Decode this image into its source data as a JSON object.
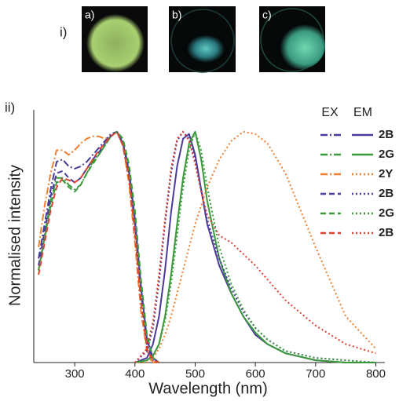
{
  "photos": {
    "panel_label": "i)",
    "labels": [
      "a)",
      "b)",
      "c)"
    ]
  },
  "chart_data": {
    "type": "line",
    "panel_label": "ii)",
    "x_label": "Wavelength (nm)",
    "y_label": "Normalised intensity",
    "legend_headers": [
      "EX",
      "EM"
    ],
    "xlim": [
      232,
      815
    ],
    "xticks": [
      300,
      400,
      500,
      600,
      700,
      800
    ],
    "ylim": [
      0,
      1.02
    ],
    "ex_x": [
      240,
      250,
      260,
      270,
      280,
      290,
      300,
      310,
      320,
      330,
      340,
      350,
      360,
      370,
      380,
      390,
      400,
      410,
      420,
      430,
      440
    ],
    "em_x": [
      400,
      420,
      430,
      440,
      450,
      460,
      470,
      480,
      490,
      500,
      510,
      520,
      540,
      560,
      580,
      600,
      620,
      650,
      700,
      750,
      800
    ],
    "series": [
      {
        "name": "2B",
        "color": "#4b3a9a",
        "ex_style": "dash-dot",
        "em_style": "solid",
        "ex": [
          0.45,
          0.6,
          0.75,
          0.87,
          0.88,
          0.85,
          0.84,
          0.85,
          0.87,
          0.9,
          0.93,
          0.96,
          0.99,
          1.0,
          0.95,
          0.82,
          0.6,
          0.3,
          0.08,
          0.01,
          0
        ],
        "em": [
          0,
          0.02,
          0.08,
          0.2,
          0.4,
          0.65,
          0.85,
          0.97,
          0.99,
          0.9,
          0.75,
          0.6,
          0.42,
          0.3,
          0.2,
          0.12,
          0.08,
          0.04,
          0.01,
          0,
          0
        ]
      },
      {
        "name": "2G",
        "color": "#3a9a3a",
        "ex_style": "dash-dot",
        "em_style": "solid",
        "ex": [
          0.4,
          0.55,
          0.7,
          0.8,
          0.8,
          0.77,
          0.75,
          0.77,
          0.82,
          0.87,
          0.9,
          0.94,
          0.98,
          1.0,
          0.96,
          0.84,
          0.62,
          0.32,
          0.1,
          0.02,
          0
        ],
        "em": [
          0,
          0.01,
          0.03,
          0.08,
          0.2,
          0.38,
          0.6,
          0.8,
          0.95,
          1.0,
          0.88,
          0.7,
          0.45,
          0.3,
          0.2,
          0.13,
          0.08,
          0.04,
          0.01,
          0,
          0
        ]
      },
      {
        "name": "2Y",
        "color": "#f08030",
        "ex_style": "dash-dot",
        "em_style": "dotted",
        "ex": [
          0.5,
          0.68,
          0.82,
          0.92,
          0.92,
          0.9,
          0.92,
          0.95,
          0.97,
          0.98,
          0.98,
          0.97,
          0.98,
          1.0,
          0.94,
          0.78,
          0.52,
          0.22,
          0.05,
          0,
          0
        ],
        "em": [
          0,
          0,
          0.02,
          0.06,
          0.12,
          0.2,
          0.3,
          0.4,
          0.5,
          0.6,
          0.68,
          0.76,
          0.88,
          0.96,
          1.0,
          0.99,
          0.95,
          0.82,
          0.5,
          0.2,
          0.06
        ]
      },
      {
        "name": "2B",
        "color": "#4b3a9a",
        "ex_style": "dashed",
        "em_style": "dotted",
        "ex": [
          0.42,
          0.57,
          0.72,
          0.82,
          0.83,
          0.8,
          0.78,
          0.8,
          0.84,
          0.88,
          0.91,
          0.95,
          0.98,
          1.0,
          0.95,
          0.83,
          0.62,
          0.33,
          0.1,
          0.02,
          0
        ],
        "em": [
          0,
          0.05,
          0.15,
          0.35,
          0.6,
          0.82,
          0.96,
          1.0,
          0.97,
          0.88,
          0.75,
          0.62,
          0.45,
          0.32,
          0.22,
          0.15,
          0.1,
          0.05,
          0.02,
          0.01,
          0
        ]
      },
      {
        "name": "2G",
        "color": "#3a9a3a",
        "ex_style": "dashed",
        "em_style": "dotted",
        "ex": [
          0.4,
          0.54,
          0.68,
          0.78,
          0.79,
          0.76,
          0.74,
          0.77,
          0.82,
          0.86,
          0.9,
          0.94,
          0.98,
          1.0,
          0.97,
          0.86,
          0.66,
          0.36,
          0.12,
          0.02,
          0
        ],
        "em": [
          0,
          0.01,
          0.03,
          0.08,
          0.18,
          0.34,
          0.55,
          0.76,
          0.92,
          1.0,
          0.92,
          0.76,
          0.5,
          0.34,
          0.23,
          0.15,
          0.1,
          0.05,
          0.02,
          0.01,
          0
        ]
      },
      {
        "name": "2B",
        "color": "#e04030",
        "ex_style": "dashed",
        "em_style": "dotted",
        "ex": [
          0.38,
          0.52,
          0.66,
          0.76,
          0.8,
          0.79,
          0.78,
          0.8,
          0.84,
          0.88,
          0.92,
          0.95,
          0.98,
          1.0,
          0.94,
          0.8,
          0.56,
          0.26,
          0.06,
          0.01,
          0
        ],
        "em": [
          0,
          0.06,
          0.18,
          0.38,
          0.62,
          0.84,
          0.97,
          1.0,
          0.96,
          0.86,
          0.74,
          0.64,
          0.55,
          0.52,
          0.47,
          0.42,
          0.36,
          0.27,
          0.16,
          0.08,
          0.04
        ]
      }
    ]
  }
}
